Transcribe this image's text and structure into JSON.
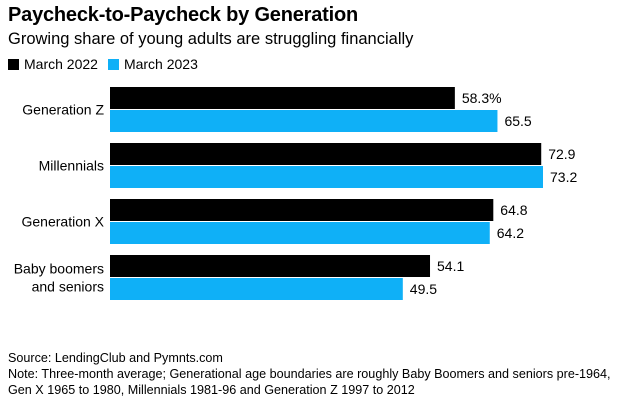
{
  "chart_data": {
    "type": "bar",
    "orientation": "horizontal",
    "title": "Paycheck-to-Paycheck by Generation",
    "subtitle": "Growing share of young adults are struggling financially",
    "categories": [
      [
        "Generation Z"
      ],
      [
        "Millennials"
      ],
      [
        "Generation X"
      ],
      [
        "Baby boomers",
        "and seniors"
      ]
    ],
    "series": [
      {
        "name": "March 2022",
        "color": "#000000",
        "values": [
          58.3,
          72.9,
          64.8,
          54.1
        ],
        "labels": [
          "58.3%",
          "72.9",
          "64.8",
          "54.1"
        ]
      },
      {
        "name": "March 2023",
        "color": "#0fb0f7",
        "values": [
          65.5,
          73.2,
          64.2,
          49.5
        ],
        "labels": [
          "65.5",
          "73.2",
          "64.2",
          "49.5"
        ]
      }
    ],
    "xlim": [
      0,
      73.2
    ],
    "grid": false,
    "legend_position": "top-left"
  },
  "footer": {
    "source": "Source: LendingClub and Pymnts.com",
    "note": "Note: Three-month average; Generational age boundaries are roughly Baby Boomers and seniors pre-1964, Gen X 1965 to 1980, Millennials 1981-96 and Generation Z 1997 to 2012"
  }
}
